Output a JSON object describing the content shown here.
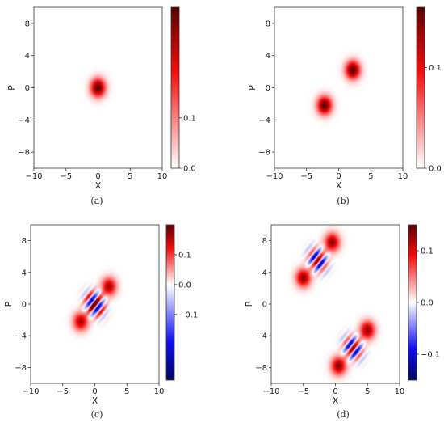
{
  "chart_data": [
    {
      "type": "heatmap",
      "caption": "(a)",
      "xlabel": "X",
      "ylabel": "P",
      "xlim": [
        -10,
        10
      ],
      "ylim": [
        -10,
        10
      ],
      "xticks": [
        "−10",
        "−5",
        "0",
        "5",
        "10"
      ],
      "yticks": [
        "8",
        "4",
        "0",
        "−4",
        "−8"
      ],
      "colormap": "white-to-red",
      "vmin": 0.0,
      "vmax": 0.32,
      "cbar_ticks": [
        "0.1",
        "0.0"
      ],
      "cbar_tick_values": [
        0.1,
        0.0
      ],
      "blobs": [
        {
          "x": 0,
          "y": 0,
          "peak": 0.32,
          "sigma": 0.8
        }
      ],
      "fringes": []
    },
    {
      "type": "heatmap",
      "caption": "(b)",
      "xlabel": "X",
      "ylabel": "P",
      "xlim": [
        -10,
        10
      ],
      "ylim": [
        -10,
        10
      ],
      "xticks": [
        "−10",
        "−5",
        "0",
        "5",
        "10"
      ],
      "yticks": [
        "8",
        "4",
        "0",
        "−4",
        "−8"
      ],
      "colormap": "white-to-red",
      "vmin": 0.0,
      "vmax": 0.16,
      "cbar_ticks": [
        "0.1",
        "0.0"
      ],
      "cbar_tick_values": [
        0.1,
        0.0
      ],
      "blobs": [
        {
          "x": 2.2,
          "y": 2.2,
          "peak": 0.16,
          "sigma": 0.8
        },
        {
          "x": -2.2,
          "y": -2.2,
          "peak": 0.16,
          "sigma": 0.8
        }
      ],
      "fringes": []
    },
    {
      "type": "heatmap",
      "caption": "(c)",
      "xlabel": "X",
      "ylabel": "P",
      "xlim": [
        -10,
        10
      ],
      "ylim": [
        -10,
        10
      ],
      "xticks": [
        "−10",
        "−5",
        "0",
        "5",
        "10"
      ],
      "yticks": [
        "8",
        "4",
        "0",
        "−4",
        "−8"
      ],
      "colormap": "blue-white-red",
      "vmin": -0.32,
      "vmax": 0.2,
      "cbar_ticks": [
        "0.1",
        "0.0",
        "−0.1"
      ],
      "cbar_tick_values": [
        0.1,
        0.0,
        -0.1
      ],
      "blobs": [
        {
          "x": 2.2,
          "y": 2.2,
          "peak": 0.16,
          "sigma": 0.8
        },
        {
          "x": -2.2,
          "y": -2.2,
          "peak": 0.16,
          "sigma": 0.8
        }
      ],
      "fringes": [
        {
          "x": 0,
          "y": 0,
          "amp": 0.3,
          "sigma": 0.85,
          "k": 4.4
        }
      ]
    },
    {
      "type": "heatmap",
      "caption": "(d)",
      "xlabel": "X",
      "ylabel": "P",
      "xlim": [
        -10,
        10
      ],
      "ylim": [
        -10,
        10
      ],
      "xticks": [
        "−10",
        "−5",
        "0",
        "5",
        "10"
      ],
      "yticks": [
        "8",
        "4",
        "0",
        "−4",
        "−8"
      ],
      "colormap": "blue-white-red",
      "vmin": -0.15,
      "vmax": 0.15,
      "cbar_ticks": [
        "0.1",
        "0.0",
        "−0.1"
      ],
      "cbar_tick_values": [
        0.1,
        0.0,
        -0.1
      ],
      "blobs": [
        {
          "x": -0.5,
          "y": 7.8,
          "peak": 0.13,
          "sigma": 0.8
        },
        {
          "x": -5.0,
          "y": 3.3,
          "peak": 0.13,
          "sigma": 0.8
        },
        {
          "x": 5.0,
          "y": -3.3,
          "peak": 0.13,
          "sigma": 0.8
        },
        {
          "x": 0.5,
          "y": -7.8,
          "peak": 0.13,
          "sigma": 0.8
        }
      ],
      "fringes": [
        {
          "x": -2.75,
          "y": 5.55,
          "amp": 0.14,
          "sigma": 0.85,
          "k": 4.4
        },
        {
          "x": 2.75,
          "y": -5.55,
          "amp": 0.14,
          "sigma": 0.85,
          "k": 4.4
        }
      ]
    }
  ]
}
